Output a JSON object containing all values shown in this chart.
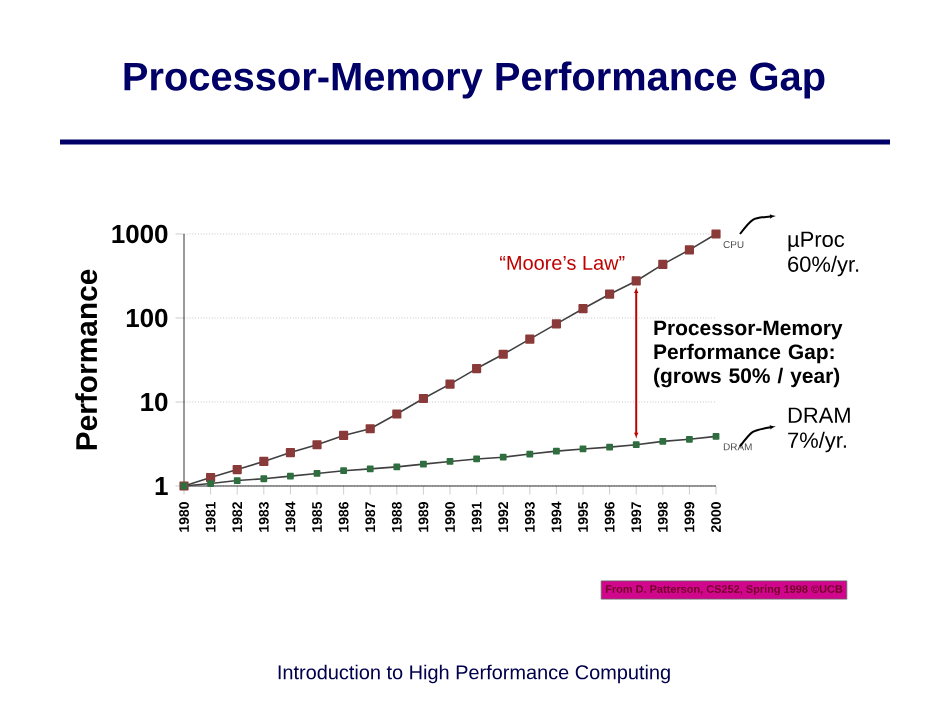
{
  "chart_data": {
    "type": "line",
    "title": "Processor-Memory Performance Gap",
    "ylabel": "Performance",
    "x": [
      1980,
      1981,
      1982,
      1983,
      1984,
      1985,
      1986,
      1987,
      1988,
      1989,
      1990,
      1991,
      1992,
      1993,
      1994,
      1995,
      1996,
      1997,
      1998,
      1999,
      2000
    ],
    "series": [
      {
        "name": "CPU",
        "color": "#8b3a3a",
        "values": [
          1,
          1.26,
          1.57,
          1.96,
          2.5,
          3.1,
          4.0,
          4.8,
          7.2,
          11,
          16.3,
          25,
          37,
          56,
          85,
          129,
          192,
          276,
          435,
          647,
          1000
        ]
      },
      {
        "name": "DRAM",
        "color": "#2f6e3e",
        "values": [
          1,
          1.07,
          1.16,
          1.22,
          1.31,
          1.41,
          1.52,
          1.6,
          1.69,
          1.82,
          1.96,
          2.1,
          2.2,
          2.4,
          2.6,
          2.76,
          2.9,
          3.1,
          3.4,
          3.6,
          3.9
        ]
      }
    ],
    "xlim": [
      1980,
      2000
    ],
    "xticks": [
      1980,
      1981,
      1982,
      1983,
      1984,
      1985,
      1986,
      1987,
      1988,
      1989,
      1990,
      1991,
      1992,
      1993,
      1994,
      1995,
      1996,
      1997,
      1998,
      1999,
      2000
    ],
    "ylim": [
      1,
      1000
    ],
    "yticks": [
      1,
      10,
      100,
      1000
    ],
    "log": "y",
    "grid": "y",
    "marker": "square",
    "line_style": "solid",
    "legend": false,
    "annotations": [
      "“Moore’s Law”",
      "Processor-Memory Performance Gap: (grows 50% / year)",
      "µProc 60%/yr.",
      "DRAM 7%/yr.",
      "From D. Patterson, CS252, Spring 1998 ©UCB",
      "Introduction to High Performance Computing"
    ]
  }
}
